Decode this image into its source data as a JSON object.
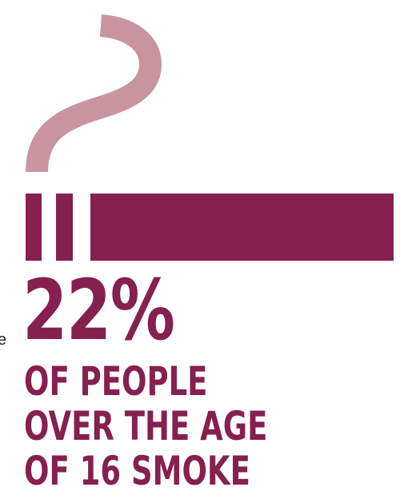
{
  "graphic": {
    "icon": "cigarette-icon",
    "smoke_icon": "smoke-icon",
    "colors": {
      "primary": "#85204f",
      "smoke": "#c7949f"
    }
  },
  "stat": {
    "value": "22%",
    "caption_lines": [
      "OF PEOPLE",
      "OVER THE AGE",
      "OF 16 SMOKE"
    ]
  },
  "edge_fragment": "e"
}
